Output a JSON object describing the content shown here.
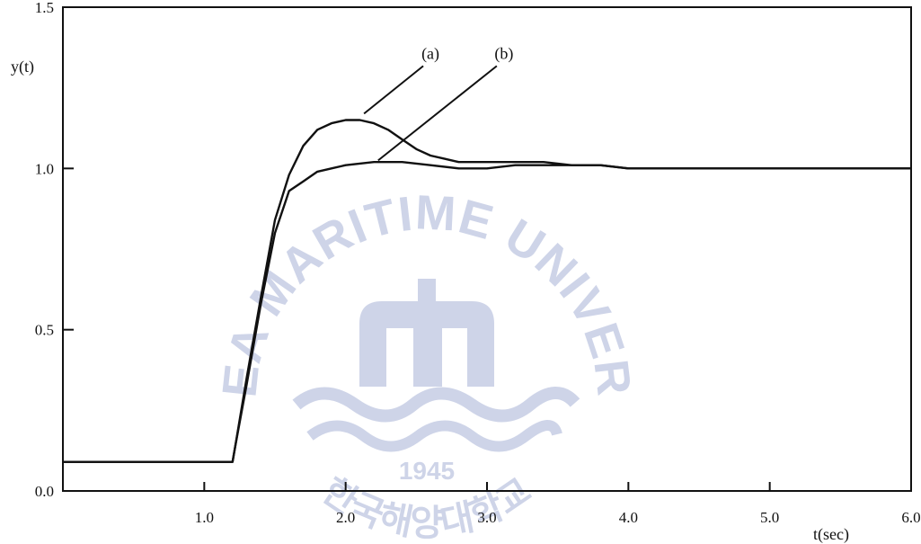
{
  "chart_data": {
    "type": "line",
    "title": "",
    "xlabel": "t(sec)",
    "ylabel": "y(t)",
    "xlim": [
      0,
      6.0
    ],
    "ylim": [
      0,
      1.5
    ],
    "x_ticks": [
      {
        "value": 1.0,
        "label": "1.0"
      },
      {
        "value": 2.0,
        "label": "2.0"
      },
      {
        "value": 3.0,
        "label": "3.0"
      },
      {
        "value": 4.0,
        "label": "4.0"
      },
      {
        "value": 5.0,
        "label": "5.0"
      },
      {
        "value": 6.0,
        "label": "6.0"
      }
    ],
    "y_ticks": [
      {
        "value": 0.0,
        "label": "0.0"
      },
      {
        "value": 0.5,
        "label": "0.5"
      },
      {
        "value": 1.0,
        "label": "1.0"
      },
      {
        "value": 1.5,
        "label": "1.5"
      }
    ],
    "grid": false,
    "series": [
      {
        "name": "(a)",
        "x": [
          0,
          1.2,
          1.22,
          1.3,
          1.4,
          1.5,
          1.6,
          1.7,
          1.8,
          1.9,
          2.0,
          2.1,
          2.2,
          2.3,
          2.4,
          2.5,
          2.6,
          2.7,
          2.8,
          3.0,
          3.2,
          3.4,
          3.6,
          3.8,
          4.0,
          4.5,
          5.0,
          6.0
        ],
        "y": [
          0.09,
          0.09,
          0.14,
          0.35,
          0.6,
          0.84,
          0.98,
          1.07,
          1.12,
          1.14,
          1.15,
          1.15,
          1.14,
          1.12,
          1.09,
          1.06,
          1.04,
          1.03,
          1.02,
          1.02,
          1.02,
          1.02,
          1.01,
          1.01,
          1.0,
          1.0,
          1.0,
          1.0
        ]
      },
      {
        "name": "(b)",
        "x": [
          0,
          1.2,
          1.22,
          1.3,
          1.4,
          1.5,
          1.6,
          1.7,
          1.8,
          1.9,
          2.0,
          2.2,
          2.4,
          2.6,
          2.8,
          2.9,
          3.0,
          3.2,
          3.5,
          3.8,
          4.0,
          4.5,
          5.0,
          6.0
        ],
        "y": [
          0.09,
          0.09,
          0.14,
          0.33,
          0.58,
          0.8,
          0.93,
          0.96,
          0.99,
          1.0,
          1.01,
          1.02,
          1.02,
          1.01,
          1.0,
          1.0,
          1.0,
          1.01,
          1.01,
          1.01,
          1.0,
          1.0,
          1.0,
          1.0
        ]
      }
    ],
    "annotations": [
      {
        "text": "(a)",
        "target_series": "(a)"
      },
      {
        "text": "(b)",
        "target_series": "(b)"
      }
    ]
  },
  "watermark": {
    "arc_text": "KOREA MARITIME UNIVERSITY",
    "year": "1945",
    "korean_text": "한국해양대학교",
    "color": "#c9d0e6"
  }
}
